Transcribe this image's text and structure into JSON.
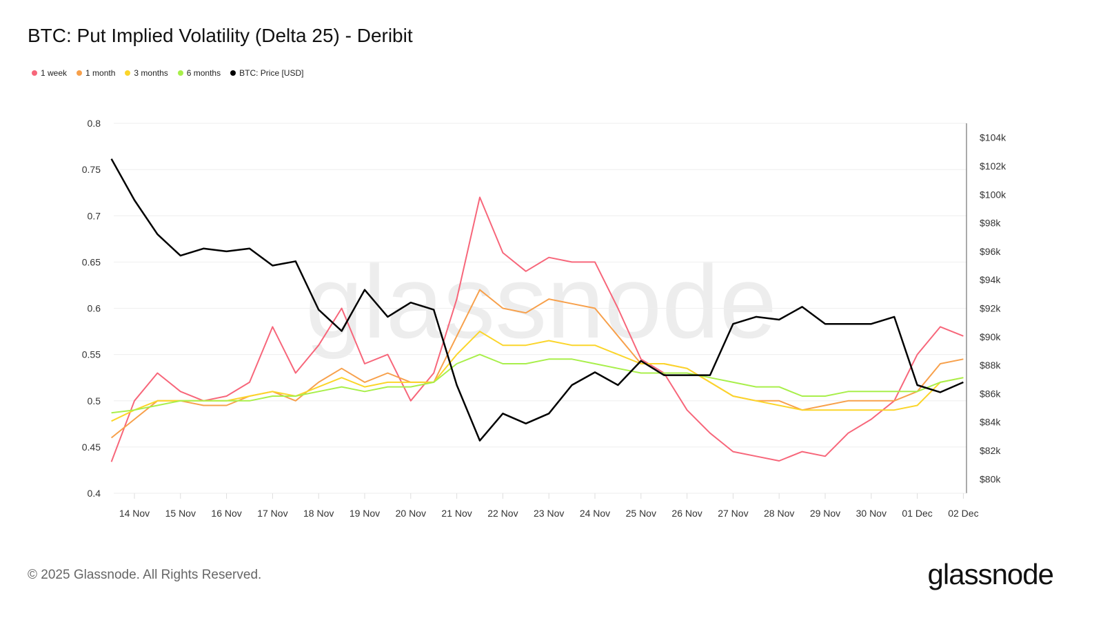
{
  "title": "BTC: Put Implied Volatility (Delta 25) - Deribit",
  "footer": "© 2025 Glassnode. All Rights Reserved.",
  "logo": "glassnode",
  "watermark": "glassnode",
  "chart_data": {
    "type": "line",
    "title": "BTC: Put Implied Volatility (Delta 25) - Deribit",
    "grid": true,
    "legend_placement": "top-left",
    "x": [
      "2025-11-13T12",
      "2025-11-14T00",
      "2025-11-14T12",
      "2025-11-15T00",
      "2025-11-15T12",
      "2025-11-16T00",
      "2025-11-16T12",
      "2025-11-17T00",
      "2025-11-17T12",
      "2025-11-18T00",
      "2025-11-18T12",
      "2025-11-19T00",
      "2025-11-19T12",
      "2025-11-20T00",
      "2025-11-20T12",
      "2025-11-21T00",
      "2025-11-21T12",
      "2025-11-22T00",
      "2025-11-22T12",
      "2025-11-23T00",
      "2025-11-23T12",
      "2025-11-24T00",
      "2025-11-24T12",
      "2025-11-25T00",
      "2025-11-25T12",
      "2025-11-26T00",
      "2025-11-26T12",
      "2025-11-27T00",
      "2025-11-27T12",
      "2025-11-28T00",
      "2025-11-28T12",
      "2025-11-29T00",
      "2025-11-29T12",
      "2025-11-30T00",
      "2025-11-30T12",
      "2025-12-01T00",
      "2025-12-01T12",
      "2025-12-02T00"
    ],
    "x_ticks": [
      "14 Nov",
      "15 Nov",
      "16 Nov",
      "17 Nov",
      "18 Nov",
      "19 Nov",
      "20 Nov",
      "21 Nov",
      "22 Nov",
      "23 Nov",
      "24 Nov",
      "25 Nov",
      "26 Nov",
      "27 Nov",
      "28 Nov",
      "29 Nov",
      "30 Nov",
      "01 Dec",
      "02 Dec"
    ],
    "y_left": {
      "ylim": [
        0.4,
        0.8
      ],
      "ticks": [
        "0.4",
        "0.45",
        "0.5",
        "0.55",
        "0.6",
        "0.65",
        "0.7",
        "0.75",
        "0.8"
      ]
    },
    "y_right": {
      "ylim": [
        79,
        105
      ],
      "ticks": [
        "$80k",
        "$82k",
        "$84k",
        "$86k",
        "$88k",
        "$90k",
        "$92k",
        "$94k",
        "$96k",
        "$98k",
        "$100k",
        "$102k",
        "$104k"
      ],
      "tick_values": [
        80,
        82,
        84,
        86,
        88,
        90,
        92,
        94,
        96,
        98,
        100,
        102,
        104
      ]
    },
    "series": [
      {
        "name": "1 week",
        "color": "#f7667a",
        "axis": "left",
        "values": [
          0.434,
          0.5,
          0.53,
          0.51,
          0.5,
          0.505,
          0.52,
          0.58,
          0.53,
          0.56,
          0.6,
          0.54,
          0.55,
          0.5,
          0.53,
          0.61,
          0.72,
          0.66,
          0.64,
          0.655,
          0.65,
          0.65,
          0.6,
          0.545,
          0.53,
          0.49,
          0.465,
          0.445,
          0.44,
          0.435,
          0.445,
          0.44,
          0.465,
          0.48,
          0.5,
          0.55,
          0.58,
          0.57
        ]
      },
      {
        "name": "1 month",
        "color": "#f7a04b",
        "axis": "left",
        "values": [
          0.46,
          0.48,
          0.5,
          0.5,
          0.495,
          0.495,
          0.505,
          0.51,
          0.5,
          0.52,
          0.535,
          0.52,
          0.53,
          0.52,
          0.52,
          0.57,
          0.62,
          0.6,
          0.595,
          0.61,
          0.605,
          0.6,
          0.57,
          0.54,
          0.54,
          0.535,
          0.52,
          0.505,
          0.5,
          0.5,
          0.49,
          0.495,
          0.5,
          0.5,
          0.5,
          0.51,
          0.54,
          0.545
        ]
      },
      {
        "name": "3 months",
        "color": "#fbd52a",
        "axis": "left",
        "values": [
          0.478,
          0.49,
          0.5,
          0.5,
          0.5,
          0.5,
          0.505,
          0.51,
          0.505,
          0.515,
          0.525,
          0.515,
          0.52,
          0.52,
          0.52,
          0.55,
          0.575,
          0.56,
          0.56,
          0.565,
          0.56,
          0.56,
          0.55,
          0.54,
          0.54,
          0.535,
          0.52,
          0.505,
          0.5,
          0.495,
          0.49,
          0.49,
          0.49,
          0.49,
          0.49,
          0.495,
          0.52,
          0.525
        ]
      },
      {
        "name": "6 months",
        "color": "#a8ef4a",
        "axis": "left",
        "values": [
          0.487,
          0.49,
          0.495,
          0.5,
          0.5,
          0.5,
          0.5,
          0.505,
          0.505,
          0.51,
          0.515,
          0.51,
          0.515,
          0.515,
          0.52,
          0.54,
          0.55,
          0.54,
          0.54,
          0.545,
          0.545,
          0.54,
          0.535,
          0.53,
          0.53,
          0.53,
          0.525,
          0.52,
          0.515,
          0.515,
          0.505,
          0.505,
          0.51,
          0.51,
          0.51,
          0.51,
          0.52,
          0.525
        ]
      },
      {
        "name": "BTC: Price [USD]",
        "color": "#000000",
        "axis": "right",
        "values": [
          102.5,
          99.6,
          97.2,
          95.7,
          96.2,
          96.0,
          96.2,
          95.0,
          95.3,
          91.9,
          90.4,
          93.3,
          91.4,
          92.4,
          91.9,
          86.6,
          82.7,
          84.6,
          83.9,
          84.6,
          86.6,
          87.5,
          86.6,
          88.3,
          87.3,
          87.3,
          87.3,
          90.9,
          91.4,
          91.2,
          92.1,
          90.9,
          90.9,
          90.9,
          91.4,
          86.6,
          86.1,
          86.8
        ]
      }
    ]
  }
}
